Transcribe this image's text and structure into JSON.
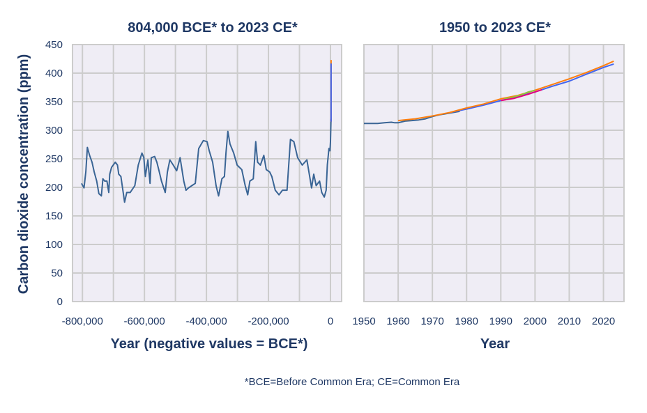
{
  "chart_data": [
    {
      "type": "line",
      "title": "804,000 BCE* to 2023 CE*",
      "xlabel": "Year (negative values = BCE*)",
      "ylabel": "Carbon dioxide concentration (ppm)",
      "xlim": [
        -832000,
        36000
      ],
      "ylim": [
        0,
        450
      ],
      "xticks": [
        -800000,
        -600000,
        -400000,
        -200000,
        0
      ],
      "xtick_labels": [
        "-800,000",
        "-600,000",
        "-400,000",
        "-200,000",
        "0"
      ],
      "xgrid_step": 100000,
      "yticks": [
        0,
        50,
        100,
        150,
        200,
        250,
        300,
        350,
        400,
        450
      ],
      "grid": true,
      "series": [
        {
          "color": "#3a6595",
          "points": [
            [
              -803000,
              207
            ],
            [
              -795000,
              199
            ],
            [
              -789000,
              227
            ],
            [
              -784000,
              270
            ],
            [
              -777000,
              256
            ],
            [
              -769000,
              244
            ],
            [
              -762000,
              227
            ],
            [
              -754000,
              211
            ],
            [
              -747000,
              189
            ],
            [
              -739000,
              185
            ],
            [
              -734000,
              215
            ],
            [
              -728000,
              211
            ],
            [
              -721000,
              211
            ],
            [
              -715000,
              191
            ],
            [
              -712000,
              223
            ],
            [
              -706000,
              235
            ],
            [
              -694000,
              244
            ],
            [
              -687000,
              239
            ],
            [
              -683000,
              223
            ],
            [
              -676000,
              219
            ],
            [
              -664000,
              174
            ],
            [
              -657000,
              191
            ],
            [
              -646000,
              191
            ],
            [
              -631000,
              203
            ],
            [
              -620000,
              239
            ],
            [
              -608000,
              260
            ],
            [
              -602000,
              252
            ],
            [
              -597000,
              219
            ],
            [
              -589000,
              248
            ],
            [
              -582000,
              207
            ],
            [
              -578000,
              252
            ],
            [
              -567000,
              254
            ],
            [
              -560000,
              244
            ],
            [
              -552000,
              227
            ],
            [
              -545000,
              211
            ],
            [
              -533000,
              191
            ],
            [
              -526000,
              227
            ],
            [
              -518000,
              248
            ],
            [
              -507000,
              239
            ],
            [
              -496000,
              229
            ],
            [
              -485000,
              252
            ],
            [
              -473000,
              211
            ],
            [
              -466000,
              195
            ],
            [
              -458000,
              199
            ],
            [
              -447000,
              203
            ],
            [
              -436000,
              207
            ],
            [
              -425000,
              268
            ],
            [
              -410000,
              282
            ],
            [
              -398000,
              280
            ],
            [
              -391000,
              264
            ],
            [
              -380000,
              244
            ],
            [
              -369000,
              203
            ],
            [
              -361000,
              185
            ],
            [
              -350000,
              215
            ],
            [
              -342000,
              219
            ],
            [
              -337000,
              260
            ],
            [
              -331000,
              298
            ],
            [
              -324000,
              276
            ],
            [
              -312000,
              260
            ],
            [
              -301000,
              239
            ],
            [
              -286000,
              231
            ],
            [
              -275000,
              203
            ],
            [
              -267000,
              187
            ],
            [
              -260000,
              211
            ],
            [
              -249000,
              215
            ],
            [
              -241000,
              280
            ],
            [
              -235000,
              244
            ],
            [
              -226000,
              239
            ],
            [
              -215000,
              256
            ],
            [
              -207000,
              231
            ],
            [
              -196000,
              227
            ],
            [
              -189000,
              219
            ],
            [
              -178000,
              195
            ],
            [
              -166000,
              187
            ],
            [
              -155000,
              195
            ],
            [
              -140000,
              195
            ],
            [
              -129000,
              284
            ],
            [
              -118000,
              280
            ],
            [
              -106000,
              252
            ],
            [
              -91000,
              239
            ],
            [
              -76000,
              248
            ],
            [
              -61000,
              199
            ],
            [
              -54000,
              223
            ],
            [
              -46000,
              203
            ],
            [
              -35000,
              211
            ],
            [
              -28000,
              191
            ],
            [
              -20000,
              183
            ],
            [
              -14000,
              195
            ],
            [
              -10000,
              239
            ],
            [
              -5000,
              268
            ],
            [
              -1500,
              264
            ],
            [
              0,
              280
            ],
            [
              1900,
              320
            ]
          ]
        },
        {
          "color": "#ff7f0e",
          "points": [
            [
              1958,
              315
            ],
            [
              1975,
              331
            ],
            [
              1990,
              354
            ],
            [
              2000,
              370
            ],
            [
              2010,
              390
            ],
            [
              2023,
              423
            ]
          ]
        },
        {
          "color": "#4466ee",
          "points": [
            [
              1958,
              315
            ],
            [
              1980,
              338
            ],
            [
              2000,
              368
            ],
            [
              2023,
              417
            ]
          ]
        }
      ]
    },
    {
      "type": "line",
      "title": "1950 to 2023 CE*",
      "xlabel": "Year",
      "xlim": [
        1950,
        2026
      ],
      "ylim": [
        0,
        450
      ],
      "xticks": [
        1950,
        1960,
        1970,
        1980,
        1990,
        2000,
        2010,
        2020
      ],
      "grid": true,
      "series": [
        {
          "color": "#3a6595",
          "points": [
            [
              1950,
              312
            ],
            [
              1954,
              312
            ],
            [
              1956,
              313
            ],
            [
              1958,
              314
            ],
            [
              1959,
              313
            ],
            [
              1960,
              313
            ],
            [
              1962,
              316
            ],
            [
              1964,
              317
            ],
            [
              1966,
              318
            ],
            [
              1968,
              320
            ],
            [
              1970,
              324
            ],
            [
              1972,
              327
            ],
            [
              1975,
              330
            ],
            [
              1978,
              333
            ]
          ]
        },
        {
          "color": "#4466ee",
          "points": [
            [
              1975,
              331
            ],
            [
              1980,
              337
            ],
            [
              1985,
              344
            ],
            [
              1990,
              352
            ],
            [
              1995,
              359
            ],
            [
              2000,
              367
            ],
            [
              2005,
              377
            ],
            [
              2010,
              386
            ],
            [
              2015,
              398
            ],
            [
              2020,
              410
            ],
            [
              2023,
              416
            ]
          ]
        },
        {
          "color": "#ff7f0e",
          "points": [
            [
              1960,
              317
            ],
            [
              1965,
              320
            ],
            [
              1970,
              325
            ],
            [
              1975,
              331
            ],
            [
              1980,
              339
            ],
            [
              1985,
              346
            ],
            [
              1990,
              355
            ],
            [
              1995,
              361
            ],
            [
              2000,
              370
            ],
            [
              2005,
              380
            ],
            [
              2010,
              390
            ],
            [
              2015,
              401
            ],
            [
              2020,
              413
            ],
            [
              2023,
              421
            ]
          ]
        },
        {
          "color": "#8dc63f",
          "points": [
            [
              1991,
              355
            ],
            [
              1993,
              357
            ],
            [
              1996,
              362
            ],
            [
              1998,
              367
            ],
            [
              2000,
              370
            ]
          ]
        },
        {
          "color": "#e6007e",
          "points": [
            [
              1990,
              352
            ],
            [
              1994,
              356
            ],
            [
              1998,
              363
            ],
            [
              2002,
              371
            ]
          ]
        }
      ]
    }
  ],
  "footnote": "*BCE=Before Common Era; CE=Common Era"
}
